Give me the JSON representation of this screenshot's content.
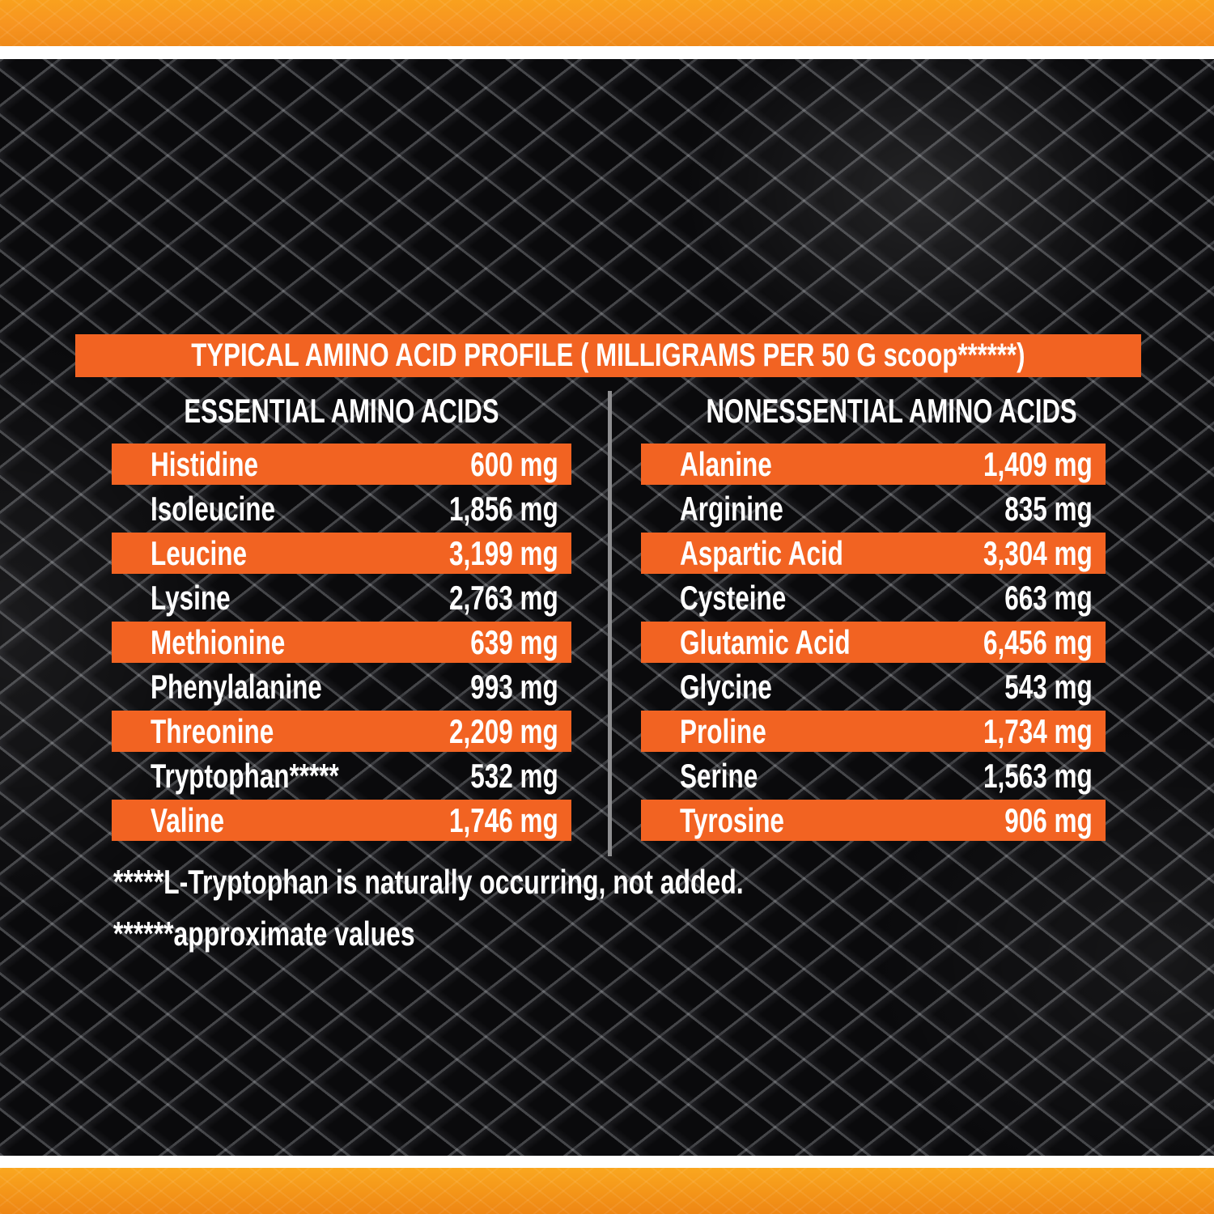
{
  "header": {
    "title": "TYPICAL AMINO ACID PROFILE ( MILLIGRAMS PER 50 G scoop******)"
  },
  "columns": [
    {
      "id": "essential",
      "header": "ESSENTIAL AMINO ACIDS",
      "rows": [
        {
          "name": "Histidine",
          "value": "600 mg",
          "highlight": true
        },
        {
          "name": "Isoleucine",
          "value": "1,856 mg",
          "highlight": false
        },
        {
          "name": "Leucine",
          "value": "3,199 mg",
          "highlight": true
        },
        {
          "name": "Lysine",
          "value": "2,763 mg",
          "highlight": false
        },
        {
          "name": "Methionine",
          "value": "639 mg",
          "highlight": true
        },
        {
          "name": "Phenylalanine",
          "value": "993 mg",
          "highlight": false
        },
        {
          "name": "Threonine",
          "value": "2,209 mg",
          "highlight": true
        },
        {
          "name": "Tryptophan*****",
          "value": "532 mg",
          "highlight": false
        },
        {
          "name": "Valine",
          "value": "1,746 mg",
          "highlight": true
        }
      ]
    },
    {
      "id": "nonessential",
      "header": "NONESSENTIAL AMINO ACIDS",
      "rows": [
        {
          "name": "Alanine",
          "value": "1,409 mg",
          "highlight": true
        },
        {
          "name": "Arginine",
          "value": "835 mg",
          "highlight": false
        },
        {
          "name": "Aspartic Acid",
          "value": "3,304 mg",
          "highlight": true
        },
        {
          "name": "Cysteine",
          "value": "663 mg",
          "highlight": false
        },
        {
          "name": "Glutamic Acid",
          "value": "6,456 mg",
          "highlight": true
        },
        {
          "name": "Glycine",
          "value": "543 mg",
          "highlight": false
        },
        {
          "name": "Proline",
          "value": "1,734 mg",
          "highlight": true
        },
        {
          "name": "Serine",
          "value": "1,563 mg",
          "highlight": false
        },
        {
          "name": "Tyrosine",
          "value": "906 mg",
          "highlight": true
        }
      ]
    }
  ],
  "footnotes": [
    "*****L-Tryptophan is naturally occurring, not added.",
    "******approximate values"
  ],
  "colors": {
    "row_orange": "#F26322",
    "border_orange_light": "#F9A11E",
    "border_orange_dark": "#EF8A16",
    "divider_gray": "#8E8E90",
    "text_white": "#FFFFFF",
    "background_black": "#0B0B0D"
  }
}
